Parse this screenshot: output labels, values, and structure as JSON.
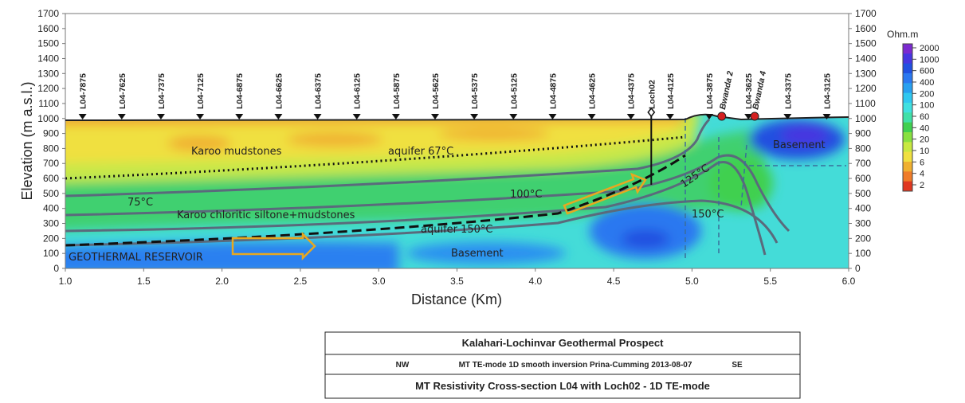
{
  "chart_data": {
    "type": "section",
    "xlabel": "Distance (Km)",
    "ylabel": "Elevation (m a.s.l.)",
    "xlim": [
      1.0,
      6.0
    ],
    "xticks": [
      {
        "value": 1,
        "label": "1.0"
      },
      {
        "value": 1.5,
        "label": "1.5"
      },
      {
        "value": 2,
        "label": "2.0"
      },
      {
        "value": 2.5,
        "label": "2.5"
      },
      {
        "value": 3,
        "label": "3.0"
      },
      {
        "value": 3.5,
        "label": "3.5"
      },
      {
        "value": 4,
        "label": "4.0"
      },
      {
        "value": 4.5,
        "label": "4.5"
      },
      {
        "value": 5,
        "label": "5.0"
      },
      {
        "value": 5.5,
        "label": "5.5"
      },
      {
        "value": 6,
        "label": "6.0"
      }
    ],
    "ylim": [
      0,
      1700
    ],
    "yticks": [
      0,
      100,
      200,
      300,
      400,
      500,
      600,
      700,
      800,
      900,
      1000,
      1100,
      1200,
      1300,
      1400,
      1500,
      1600,
      1700
    ],
    "y2lim": [
      0,
      1700
    ],
    "y2ticks": [
      0,
      100,
      200,
      300,
      400,
      500,
      600,
      700,
      800,
      900,
      1000,
      1100,
      1200,
      1300,
      1400,
      1500,
      1600,
      1700
    ],
    "stations": [
      {
        "name": "L04-7875",
        "x": 1.11,
        "marker": "triangle",
        "color": "#111111"
      },
      {
        "name": "L04-7625",
        "x": 1.36,
        "marker": "triangle",
        "color": "#111111"
      },
      {
        "name": "L04-7375",
        "x": 1.61,
        "marker": "triangle",
        "color": "#111111"
      },
      {
        "name": "L04-7125",
        "x": 1.86,
        "marker": "triangle",
        "color": "#111111"
      },
      {
        "name": "L04-6875",
        "x": 2.11,
        "marker": "triangle",
        "color": "#111111"
      },
      {
        "name": "L04-6625",
        "x": 2.36,
        "marker": "triangle",
        "color": "#111111"
      },
      {
        "name": "L04-6375",
        "x": 2.61,
        "marker": "triangle",
        "color": "#111111"
      },
      {
        "name": "L04-6125",
        "x": 2.86,
        "marker": "triangle",
        "color": "#111111"
      },
      {
        "name": "L04-5875",
        "x": 3.11,
        "marker": "triangle",
        "color": "#111111"
      },
      {
        "name": "L04-5625",
        "x": 3.36,
        "marker": "triangle",
        "color": "#111111"
      },
      {
        "name": "L04-5375",
        "x": 3.61,
        "marker": "triangle",
        "color": "#111111"
      },
      {
        "name": "L04-5125",
        "x": 3.86,
        "marker": "triangle",
        "color": "#111111"
      },
      {
        "name": "L04-4875",
        "x": 4.11,
        "marker": "triangle",
        "color": "#111111"
      },
      {
        "name": "L04-4625",
        "x": 4.36,
        "marker": "triangle",
        "color": "#111111"
      },
      {
        "name": "L04-4375",
        "x": 4.61,
        "marker": "triangle",
        "color": "#111111"
      },
      {
        "name": "Loch02",
        "x": 4.74,
        "marker": "diamond",
        "color": "#111111"
      },
      {
        "name": "L04-4125",
        "x": 4.86,
        "marker": "triangle",
        "color": "#111111"
      },
      {
        "name": "L04-3875",
        "x": 5.11,
        "marker": "triangle",
        "color": "#111111"
      },
      {
        "name": "Bwanda 2",
        "x": 5.19,
        "marker": "circle",
        "color": "#d42020"
      },
      {
        "name": "L04-3625",
        "x": 5.36,
        "marker": "triangle",
        "color": "#111111"
      },
      {
        "name": "Bwanda 4",
        "x": 5.4,
        "marker": "circle",
        "color": "#d42020"
      },
      {
        "name": "L04-3375",
        "x": 5.61,
        "marker": "triangle",
        "color": "#111111"
      },
      {
        "name": "L04-3125",
        "x": 5.86,
        "marker": "triangle",
        "color": "#111111"
      }
    ],
    "annotations": [
      {
        "text": "Karoo mudstones",
        "color": "#222222"
      },
      {
        "text": "aquifer 67°C",
        "color": "#222222"
      },
      {
        "text": "75°C",
        "color": "#222222"
      },
      {
        "text": "100°C",
        "color": "#222222"
      },
      {
        "text": "125°C",
        "color": "#222222"
      },
      {
        "text": "150°C",
        "color": "#222222"
      },
      {
        "text": "Karoo chloritic siltone+mudstones",
        "color": "#222222"
      },
      {
        "text": "aquifer 150°C",
        "color": "#222222"
      },
      {
        "text": "GEOTHERMAL RESERVOIR",
        "color": "#f0c020"
      },
      {
        "text": "Basement",
        "color": "#d83040"
      },
      {
        "text": "Basement",
        "color": "#d83040"
      }
    ],
    "colorbar": {
      "title": "Ohm.m",
      "ticks": [
        2000,
        1000,
        600,
        400,
        200,
        100,
        60,
        40,
        20,
        10,
        6,
        4,
        2
      ],
      "colors": [
        "#7b2ad0",
        "#4636e0",
        "#2050e0",
        "#2a78f0",
        "#28a0f0",
        "#30c8f0",
        "#40e0e0",
        "#40e0a8",
        "#40d050",
        "#88e040",
        "#c8e840",
        "#f0e040",
        "#f0b030",
        "#f07c28",
        "#e03820"
      ]
    }
  },
  "legend_box": {
    "title": "Kalahari-Lochinvar Geothermal Prospect",
    "left": "NW",
    "subtitle": "MT TE-mode 1D smooth inversion Prina-Cumming 2013-08-07",
    "right": "SE",
    "caption": "MT Resistivity Cross-section L04 with Loch02 - 1D TE-mode"
  }
}
